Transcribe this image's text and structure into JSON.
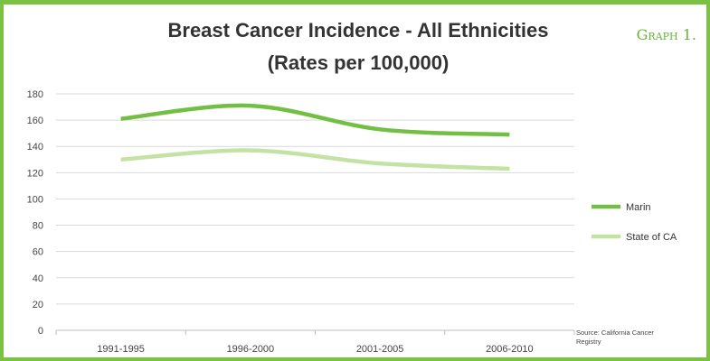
{
  "graph_label": "Graph 1.",
  "source_line1": "Source: California Cancer",
  "source_line2": "Registry",
  "colors": {
    "frame": "#7cc242",
    "marin": "#72bf44",
    "state": "#c3e2a3",
    "grid": "#d9d9d9"
  },
  "chart_data": {
    "type": "line",
    "title": "Breast Cancer Incidence - All Ethnicities",
    "subtitle": "(Rates per 100,000)",
    "categories": [
      "1991-1995",
      "1996-2000",
      "2001-2005",
      "2006-2010"
    ],
    "series": [
      {
        "name": "Marin",
        "values": [
          161,
          171,
          153,
          149
        ]
      },
      {
        "name": "State of CA",
        "values": [
          130,
          137,
          127,
          123
        ]
      }
    ],
    "xlabel": "",
    "ylabel": "",
    "ylim": [
      0,
      180
    ],
    "yticks": [
      0,
      20,
      40,
      60,
      80,
      100,
      120,
      140,
      160,
      180
    ],
    "grid": true,
    "legend_position": "right"
  }
}
